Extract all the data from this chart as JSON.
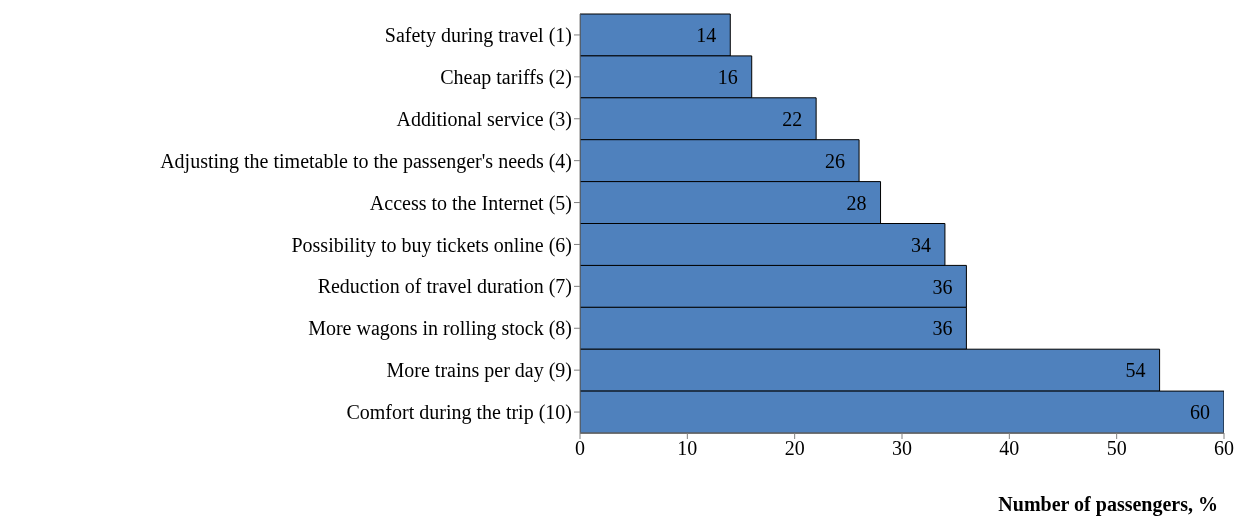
{
  "chart_data": {
    "type": "bar",
    "orientation": "horizontal",
    "xlabel": "Number of passengers, %",
    "categories": [
      "Safety during travel (1)",
      "Cheap tariffs (2)",
      "Additional service (3)",
      "Adjusting the timetable to the passenger's needs (4)",
      "Access to the Internet (5)",
      "Possibility to buy tickets online (6)",
      "Reduction of travel duration (7)",
      "More wagons in rolling stock (8)",
      "More trains per day (9)",
      "Comfort during the trip (10)"
    ],
    "values": [
      14,
      16,
      22,
      26,
      28,
      34,
      36,
      36,
      54,
      60
    ],
    "color": "#4f81bd",
    "xlim": [
      0,
      60
    ],
    "xticks": [
      0,
      10,
      20,
      30,
      40,
      50,
      60
    ],
    "data_labels": true
  }
}
